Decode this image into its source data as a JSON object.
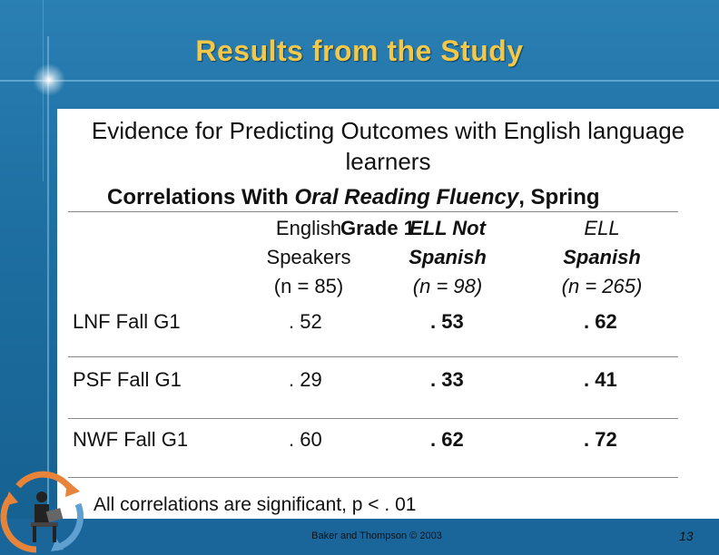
{
  "title": "Results from the Study",
  "subtitle": "Evidence for Predicting Outcomes with English language learners",
  "heading": {
    "prefix": "Correlations With ",
    "italic": "Oral Reading Fluency",
    "suffix": ", Spring"
  },
  "grade_label": "Grade 1",
  "columns": [
    {
      "line1": "English",
      "line2": "Speakers",
      "line3": "(n = 85)"
    },
    {
      "line1": "ELL Not",
      "line2": "Spanish",
      "line3": "(n = 98)"
    },
    {
      "line1": "ELL",
      "line2": "Spanish",
      "line3": "(n = 265)"
    }
  ],
  "rows": [
    {
      "label": "LNF Fall G1",
      "values": [
        ". 52",
        ". 53",
        ". 62"
      ]
    },
    {
      "label": "PSF Fall G1",
      "values": [
        ". 29",
        ". 33",
        ". 41"
      ]
    },
    {
      "label": "NWF Fall G1",
      "values": [
        ". 60",
        ". 62",
        ". 72"
      ]
    }
  ],
  "footnote": "All correlations are significant, p < . 01",
  "footer": {
    "credit": "Baker and Thompson © 2003",
    "page_number": "13"
  },
  "logo_icon": "recycling-reader-icon",
  "colors": {
    "title": "#f2c84b",
    "background": "#1f6d9e",
    "panel": "#ffffff"
  }
}
